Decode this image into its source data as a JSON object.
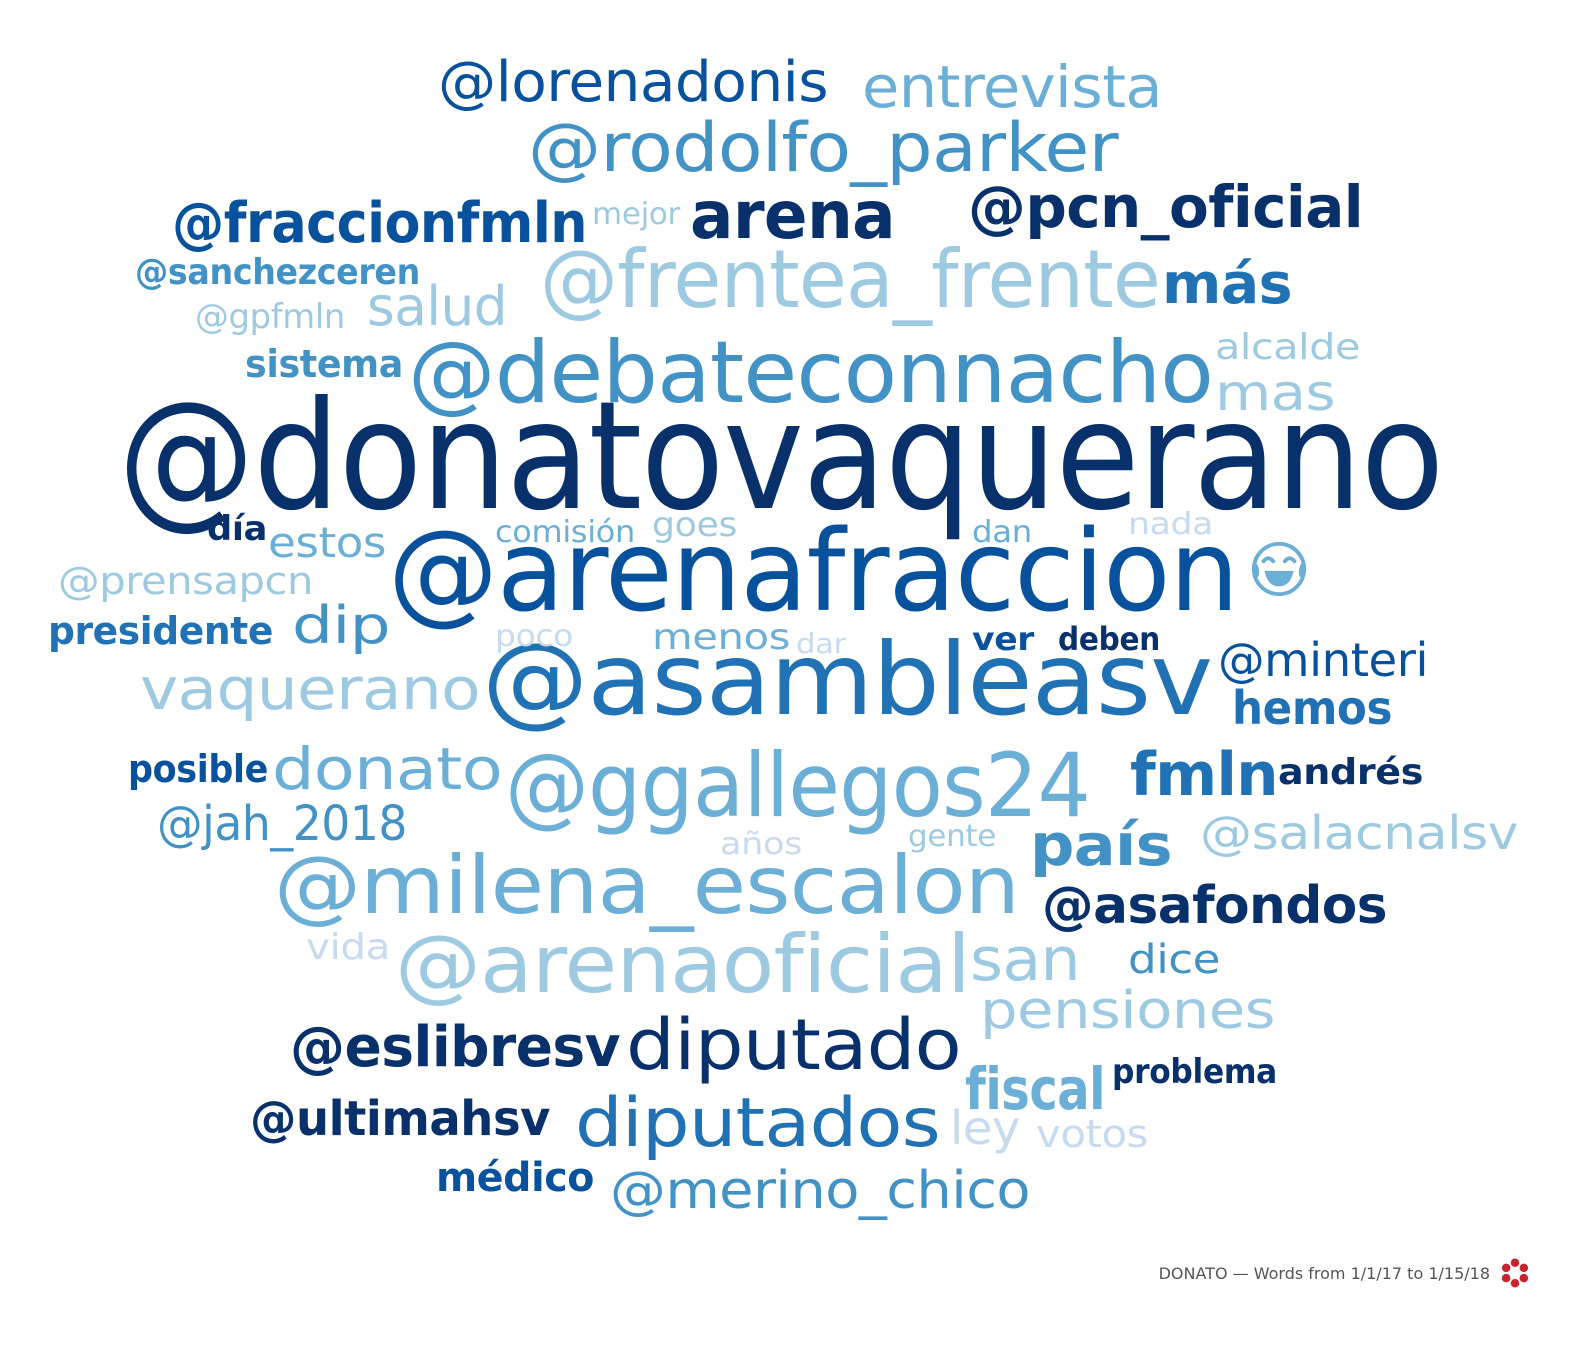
{
  "footer": {
    "caption": "DONATO — Words from 1/1/17 to 1/15/18",
    "logo_icon": "flower-logo-icon",
    "logo_color": "#c8242d"
  },
  "palette": {
    "darkest": "#08306b",
    "dark": "#08519c",
    "medium_dark": "#2171b5",
    "medium": "#4292c6",
    "medium_light": "#6baed6",
    "light": "#9ecae1",
    "lightest": "#c6dbef"
  },
  "words": [
    {
      "text": "@donatovaquerano",
      "color": "#08306b"
    },
    {
      "text": "@arenafraccion",
      "color": "#08519c"
    },
    {
      "text": "@asambleasv",
      "color": "#2171b5"
    },
    {
      "text": "@debateconnacho",
      "color": "#4292c6"
    },
    {
      "text": "@ggallegos24",
      "color": "#6baed6"
    },
    {
      "text": "@milena_escalon",
      "color": "#6baed6"
    },
    {
      "text": "@frentea_frente",
      "color": "#9ecae1"
    },
    {
      "text": "@arenaoficial",
      "color": "#9ecae1"
    },
    {
      "text": "@rodolfo_parker",
      "color": "#4292c6"
    },
    {
      "text": "@lorenadonis",
      "color": "#08519c"
    },
    {
      "text": "entrevista",
      "color": "#6baed6"
    },
    {
      "text": "arena",
      "color": "#08306b"
    },
    {
      "text": "@pcn_oficial",
      "color": "#08306b"
    },
    {
      "text": "@fraccionfmln",
      "color": "#08519c"
    },
    {
      "text": "mejor",
      "color": "#9ecae1"
    },
    {
      "text": "@sanchezceren",
      "color": "#4292c6"
    },
    {
      "text": "@gpfmln",
      "color": "#9ecae1"
    },
    {
      "text": "salud",
      "color": "#9ecae1"
    },
    {
      "text": "más",
      "color": "#2171b5"
    },
    {
      "text": "sistema",
      "color": "#4292c6"
    },
    {
      "text": "alcalde",
      "color": "#9ecae1"
    },
    {
      "text": "mas",
      "color": "#9ecae1"
    },
    {
      "text": "día",
      "color": "#08306b"
    },
    {
      "text": "estos",
      "color": "#6baed6"
    },
    {
      "text": "comisión",
      "color": "#6baed6"
    },
    {
      "text": "goes",
      "color": "#9ecae1"
    },
    {
      "text": "dan",
      "color": "#6baed6"
    },
    {
      "text": "nada",
      "color": "#c6dbef"
    },
    {
      "text": "@prensapcn",
      "color": "#9ecae1"
    },
    {
      "text": "presidente",
      "color": "#2171b5"
    },
    {
      "text": "dip",
      "color": "#4292c6"
    },
    {
      "text": "poco",
      "color": "#c6dbef"
    },
    {
      "text": "menos",
      "color": "#6baed6"
    },
    {
      "text": "dar",
      "color": "#c6dbef"
    },
    {
      "text": "ver",
      "color": "#08519c"
    },
    {
      "text": "deben",
      "color": "#08306b"
    },
    {
      "text": "@minteri",
      "color": "#08519c"
    },
    {
      "text": "vaquerano",
      "color": "#9ecae1"
    },
    {
      "text": "hemos",
      "color": "#2171b5"
    },
    {
      "text": "posible",
      "color": "#08519c"
    },
    {
      "text": "donato",
      "color": "#6baed6"
    },
    {
      "text": "fmln",
      "color": "#2171b5"
    },
    {
      "text": "andrés",
      "color": "#08306b"
    },
    {
      "text": "@jah_2018",
      "color": "#4292c6"
    },
    {
      "text": "país",
      "color": "#4292c6"
    },
    {
      "text": "@salacnalsv",
      "color": "#9ecae1"
    },
    {
      "text": "años",
      "color": "#c6dbef"
    },
    {
      "text": "gente",
      "color": "#9ecae1"
    },
    {
      "text": "@asafondos",
      "color": "#08306b"
    },
    {
      "text": "vida",
      "color": "#c6dbef"
    },
    {
      "text": "san",
      "color": "#9ecae1"
    },
    {
      "text": "dice",
      "color": "#4292c6"
    },
    {
      "text": "pensiones",
      "color": "#9ecae1"
    },
    {
      "text": "@eslibresv",
      "color": "#08306b"
    },
    {
      "text": "diputado",
      "color": "#08306b"
    },
    {
      "text": "fiscal",
      "color": "#6baed6"
    },
    {
      "text": "problema",
      "color": "#08306b"
    },
    {
      "text": "@ultimahsv",
      "color": "#08306b"
    },
    {
      "text": "diputados",
      "color": "#2171b5"
    },
    {
      "text": "ley",
      "color": "#c6dbef"
    },
    {
      "text": "votos",
      "color": "#c6dbef"
    },
    {
      "text": "médico",
      "color": "#08519c"
    },
    {
      "text": "@merino_chico",
      "color": "#4292c6"
    }
  ],
  "emoji": {
    "icon": "tears-of-joy-emoji-icon",
    "color": "#6baed6"
  }
}
